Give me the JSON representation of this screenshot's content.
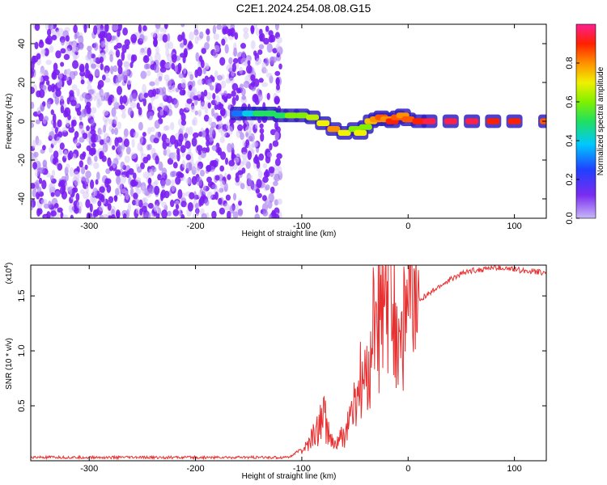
{
  "title": "C2E1.2024.254.08.08.G15",
  "colors": {
    "snr_line": "#e83030",
    "axis": "#000000"
  },
  "chart_data": [
    {
      "type": "heatmap",
      "xlabel": "Height of straight line (km)",
      "ylabel": "Frequency (Hz)",
      "xlim": [
        -355,
        130
      ],
      "ylim": [
        -50,
        50
      ],
      "xticks": [
        -300,
        -200,
        -100,
        0,
        100
      ],
      "yticks": [
        -40,
        -20,
        0,
        20,
        40
      ],
      "colorbar": {
        "label": "Normalized spectral amplitude",
        "range": [
          0,
          1
        ],
        "ticks": [
          "0.0",
          "0.2",
          "0.4",
          "0.6",
          "0.8"
        ],
        "tick_values": [
          0.0,
          0.2,
          0.4,
          0.6,
          0.8
        ]
      },
      "noise_region_x": [
        -355,
        -120
      ],
      "ridge": {
        "x": [
          -160,
          -150,
          -140,
          -130,
          -120,
          -110,
          -100,
          -90,
          -80,
          -70,
          -60,
          -50,
          -45,
          -40,
          -35,
          -30,
          -25,
          -20,
          -15,
          -10,
          -5,
          0,
          10,
          20,
          40,
          60,
          80,
          100,
          130
        ],
        "frequency": [
          4,
          4,
          4,
          4,
          3,
          3,
          3,
          2,
          -1,
          -4,
          -6,
          -4,
          -6,
          -3,
          0,
          1,
          2,
          1,
          0,
          2,
          3,
          1,
          0,
          0,
          0,
          0,
          0,
          0,
          0
        ],
        "amplitude": [
          0.3,
          0.4,
          0.5,
          0.5,
          0.5,
          0.6,
          0.6,
          0.65,
          0.7,
          0.8,
          0.7,
          0.6,
          0.7,
          0.6,
          0.75,
          0.8,
          0.85,
          0.8,
          0.9,
          0.85,
          0.8,
          0.85,
          0.9,
          0.95,
          0.95,
          0.95,
          0.9,
          0.9,
          0.85
        ]
      }
    },
    {
      "type": "line",
      "xlabel": "Height of straight line (km)",
      "ylabel": "SNR (10 * v/v)",
      "y_multiplier_label": "(x10",
      "y_multiplier_exp": "4",
      "xlim": [
        -355,
        130
      ],
      "ylim": [
        0,
        17800
      ],
      "xticks": [
        -300,
        -200,
        -100,
        0,
        100
      ],
      "yticks": [
        5000,
        10000,
        15000
      ],
      "ytick_labels": [
        "0.5",
        "1.0",
        "1.5"
      ],
      "series": [
        {
          "x": [
            -355,
            -300,
            -200,
            -120,
            -110,
            -100,
            -95,
            -90,
            -85,
            -80,
            -75,
            -70,
            -65,
            -60,
            -55,
            -50,
            -45,
            -40,
            -35,
            -30,
            -25,
            -20,
            -18,
            -15,
            -12,
            -10,
            -5,
            0,
            5,
            10,
            15,
            20,
            30,
            40,
            50,
            60,
            70,
            80,
            90,
            100,
            110,
            120,
            130
          ],
          "y": [
            300,
            300,
            300,
            300,
            400,
            1100,
            1300,
            2200,
            2800,
            4500,
            2400,
            1300,
            1900,
            2200,
            4000,
            4800,
            7200,
            6600,
            10300,
            13500,
            12400,
            13700,
            17200,
            13000,
            12000,
            11700,
            12600,
            13500,
            14000,
            14700,
            14900,
            15200,
            15900,
            16500,
            17000,
            17300,
            17400,
            17600,
            17500,
            17400,
            17300,
            17200,
            17100
          ]
        }
      ]
    }
  ]
}
